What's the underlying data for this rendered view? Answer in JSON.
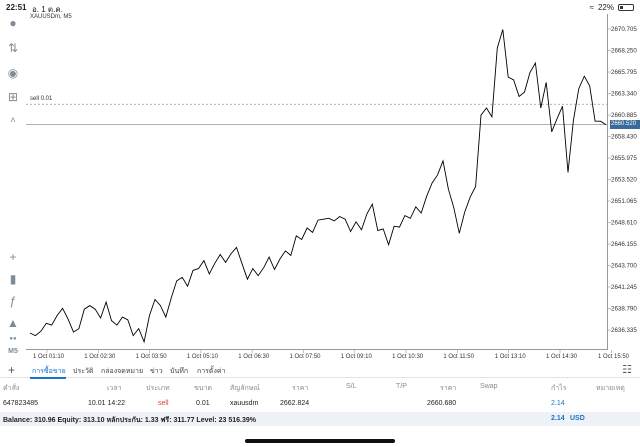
{
  "status": {
    "time": "22:51",
    "date": "อ. 1 ต.ค.",
    "wifi_icon": "wifi-icon",
    "battery": "22%",
    "battery_level": 0.22
  },
  "chart": {
    "symbol": "XAUUSDm, M5",
    "sell_order_label": "sell 0.01",
    "current_price": "2660.520",
    "price_tag_color": "#3a6a99",
    "line_color": "#000000",
    "price_ticks": [
      "2670.705",
      "2668.250",
      "2665.795",
      "2663.340",
      "2660.885",
      "2658.430",
      "2655.975",
      "2653.520",
      "2651.065",
      "2648.610",
      "2646.155",
      "2643.700",
      "2641.245",
      "2638.790",
      "2636.335"
    ],
    "time_ticks": [
      "1 Oct 01:10",
      "1 Oct 02:30",
      "1 Oct 03:50",
      "1 Oct 05:10",
      "1 Oct 06:30",
      "1 Oct 07:50",
      "1 Oct 09:10",
      "1 Oct 10:30",
      "1 Oct 11:50",
      "1 Oct 13:10",
      "1 Oct 14:30",
      "1 Oct 15:50"
    ]
  },
  "chart_data": {
    "type": "line",
    "title": "XAUUSDm, M5",
    "xlabel": "",
    "ylabel": "",
    "ylim": [
      2635.2,
      2672.6
    ],
    "xlim": [
      "1 Oct 01:10",
      "1 Oct 15:50"
    ],
    "grid": false,
    "horizontal_lines": [
      {
        "label": "sell 0.01",
        "value": 2662.824,
        "style": "dotted"
      },
      {
        "label": "2660.520",
        "value": 2660.52,
        "style": "solid"
      }
    ],
    "series": [
      {
        "values": [
          2636.9,
          2636.6,
          2637.1,
          2638.0,
          2637.8,
          2638.9,
          2639.7,
          2638.5,
          2637.0,
          2637.4,
          2639.6,
          2640.0,
          2639.6,
          2638.6,
          2640.4,
          2638.3,
          2637.8,
          2638.7,
          2638.4,
          2636.6,
          2637.4,
          2635.9,
          2638.9,
          2640.7,
          2640.0,
          2638.7,
          2640.9,
          2642.8,
          2643.2,
          2642.2,
          2644.0,
          2644.2,
          2645.1,
          2643.6,
          2644.8,
          2645.8,
          2644.9,
          2645.9,
          2646.6,
          2644.8,
          2643.0,
          2644.2,
          2643.4,
          2644.3,
          2645.5,
          2644.1,
          2645.3,
          2646.2,
          2645.7,
          2647.9,
          2647.5,
          2648.8,
          2648.3,
          2649.7,
          2649.8,
          2649.9,
          2649.6,
          2650.1,
          2649.8,
          2648.4,
          2649.5,
          2648.6,
          2650.4,
          2651.5,
          2648.5,
          2648.7,
          2646.9,
          2649.0,
          2648.9,
          2650.2,
          2649.9,
          2651.2,
          2650.5,
          2652.4,
          2653.9,
          2654.8,
          2656.4,
          2653.2,
          2651.1,
          2648.2,
          2650.6,
          2652.3,
          2653.5,
          2661.6,
          2662.4,
          2661.4,
          2669.2,
          2671.3,
          2665.9,
          2665.6,
          2663.7,
          2664.2,
          2666.4,
          2667.5,
          2662.4,
          2665.3,
          2659.7,
          2661.2,
          2662.6,
          2655.1,
          2661.0,
          2664.6,
          2666.0,
          2664.9,
          2660.9,
          2660.9,
          2660.5
        ]
      }
    ]
  },
  "tabs": {
    "items": [
      "การซื้อขาย",
      "ประวัติ",
      "กล่องจดหมาย",
      "ข่าว",
      "บันทึก",
      "การตั้งค่า"
    ]
  },
  "table": {
    "headers": [
      "คำสั่ง",
      "เวลา",
      "ประเภท",
      "ขนาด",
      "สัญลักษณ์",
      "ราคา",
      "S/L",
      "T/P",
      "ราคา",
      "Swap",
      "กำไร",
      "หมายเหตุ"
    ],
    "row": {
      "order": "647823485",
      "time": "10.01 14:22",
      "type": "sell",
      "size": "0.01",
      "symbol": "xauusdm",
      "open_price": "2662.824",
      "price": "2660.680",
      "profit": "2.14"
    }
  },
  "balance": {
    "summary": "Balance: 310.96 Equity: 313.10 หลักประกัน: 1.33 ฟรี: 311.77 Level: 23 516.39%",
    "profit": "2.14",
    "currency": "USD"
  }
}
